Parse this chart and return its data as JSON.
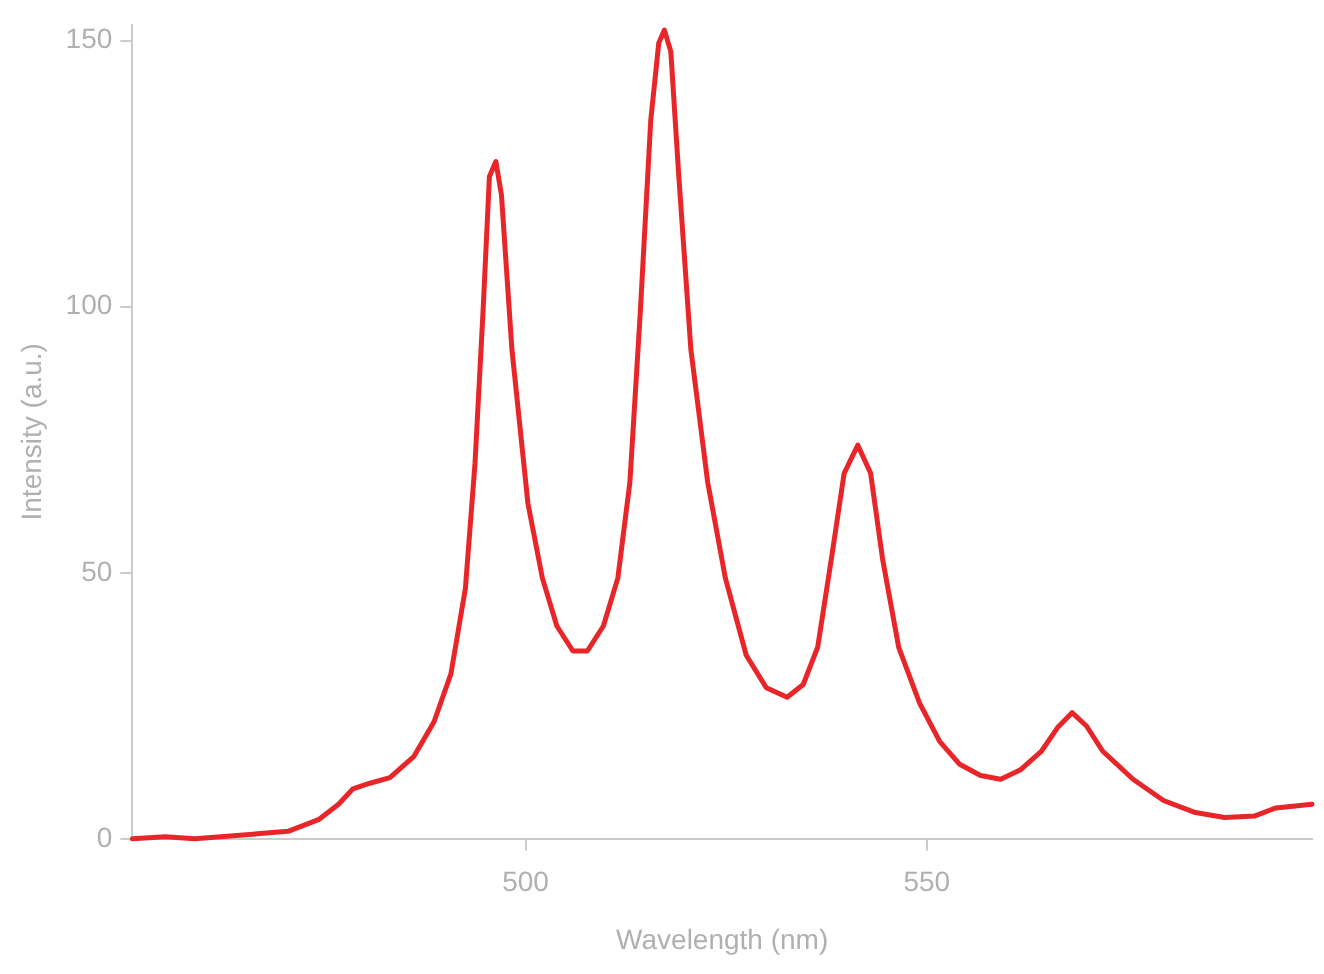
{
  "chart_data": {
    "type": "line",
    "xlabel": "Wavelength (nm)",
    "ylabel": "Intensity (a.u.)",
    "xlim": [
      451,
      598
    ],
    "xticks": [
      500,
      550
    ],
    "ylim": [
      0,
      153
    ],
    "yticks": [
      0,
      50,
      100,
      150
    ],
    "grid": false,
    "legend": false,
    "marker": "none",
    "line_style": "solid",
    "series": [
      {
        "color": "#e8262a",
        "x": [
          451,
          455.1,
          458.8,
          470.4,
          474.2,
          476.7,
          478.5,
          480.5,
          483.1,
          486.1,
          488.6,
          490.7,
          492.5,
          493.7,
          494.7,
          495.5,
          496.3,
          497.0,
          498.3,
          500.3,
          502.1,
          503.9,
          505.9,
          507.7,
          509.7,
          511.5,
          513.0,
          514.3,
          515.6,
          516.6,
          517.3,
          518.1,
          519.1,
          520.6,
          522.7,
          524.9,
          527.5,
          530.0,
          532.6,
          534.6,
          536.4,
          538.1,
          539.7,
          541.4,
          543.0,
          544.5,
          546.5,
          549.1,
          551.6,
          554.1,
          556.7,
          559.2,
          561.7,
          564.3,
          566.3,
          568.1,
          569.9,
          571.9,
          575.7,
          579.5,
          583.3,
          587.1,
          590.9,
          593.5,
          598
        ],
        "values": [
          0,
          0.4,
          0,
          1.4,
          3.6,
          6.5,
          9.4,
          10.4,
          11.5,
          15.5,
          22,
          31,
          47,
          70.5,
          99,
          124.5,
          127.3,
          121,
          92,
          63,
          49,
          40,
          35.3,
          35.3,
          40,
          49,
          67,
          99,
          135,
          149.6,
          152,
          148,
          124.5,
          92,
          67,
          49,
          34.5,
          28.4,
          26.6,
          29,
          36,
          52.5,
          68.7,
          74,
          68.7,
          52.5,
          36,
          25.5,
          18.3,
          14,
          11.9,
          11.2,
          13,
          16.5,
          20.9,
          23.7,
          21.2,
          16.5,
          11.2,
          7.2,
          5,
          4,
          4.3,
          5.8,
          6.5
        ]
      }
    ]
  }
}
